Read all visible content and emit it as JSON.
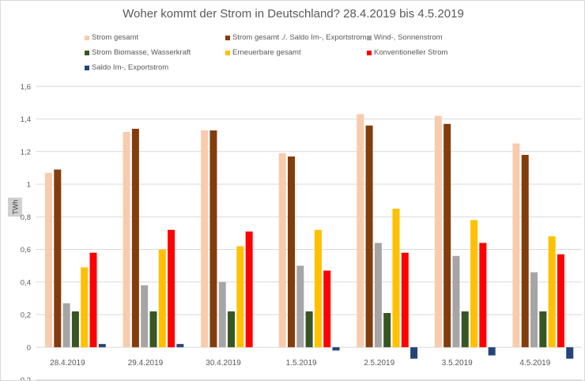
{
  "chart_data": {
    "type": "bar",
    "title": "Woher kommt der Strom in Deutschland? 28.4.2019 bis 4.5.2019",
    "ylabel": "TWh",
    "xlabel": "",
    "ylim": [
      -0.2,
      1.6
    ],
    "yticks": [
      "-0,2",
      "0",
      "0,2",
      "0,4",
      "0,6",
      "0,8",
      "1",
      "1,2",
      "1,4",
      "1,6"
    ],
    "grid": true,
    "legend_position": "top",
    "categories": [
      "28.4.2019",
      "29.4.2019",
      "30.4.2019",
      "1.5.2019",
      "2.5.2019",
      "3.5.2019",
      "4.5.2019"
    ],
    "series": [
      {
        "name": "Strom gesamt",
        "color": "#f8cbad",
        "values": [
          1.07,
          1.32,
          1.33,
          1.19,
          1.43,
          1.42,
          1.25
        ]
      },
      {
        "name": "Strom gesamt ./. Saldo Im-, Exportstrom",
        "color": "#843c0c",
        "values": [
          1.09,
          1.34,
          1.33,
          1.17,
          1.36,
          1.37,
          1.18
        ]
      },
      {
        "name": "Wind-, Sonnenstrom",
        "color": "#a5a5a5",
        "values": [
          0.27,
          0.38,
          0.4,
          0.5,
          0.64,
          0.56,
          0.46
        ]
      },
      {
        "name": "Strom Biomasse, Wasserkraft",
        "color": "#375623",
        "values": [
          0.22,
          0.22,
          0.22,
          0.22,
          0.21,
          0.22,
          0.22
        ]
      },
      {
        "name": "Erneuerbare gesamt",
        "color": "#ffc000",
        "values": [
          0.49,
          0.6,
          0.62,
          0.72,
          0.85,
          0.78,
          0.68
        ]
      },
      {
        "name": "Konventioneller Strom",
        "color": "#ff0000",
        "values": [
          0.58,
          0.72,
          0.71,
          0.47,
          0.58,
          0.64,
          0.57
        ]
      },
      {
        "name": "Saldo Im-, Exportstrom",
        "color": "#264478",
        "values": [
          0.02,
          0.02,
          0.0,
          -0.02,
          -0.07,
          -0.05,
          -0.07
        ]
      }
    ]
  }
}
